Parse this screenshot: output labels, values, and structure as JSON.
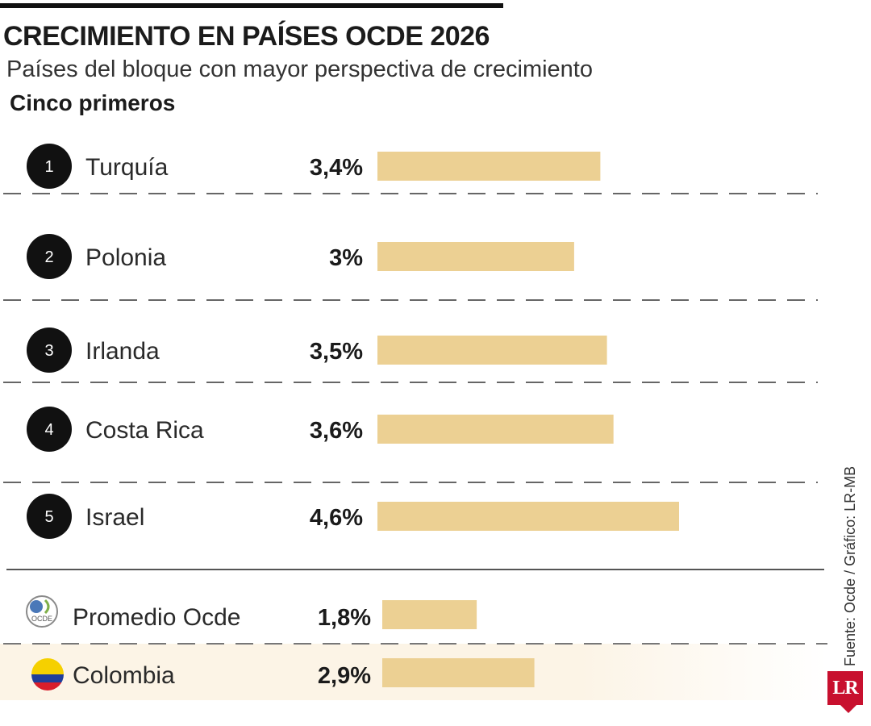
{
  "header": {
    "title": "CRECIMIENTO EN PAÍSES OCDE 2026",
    "subtitle": "Países del bloque con mayor perspectiva de crecimiento",
    "section_label": "Cinco primeros"
  },
  "source": "Fuente: Ocde / Gráfico: LR-MB",
  "logo_text": "LR",
  "colors": {
    "bar": "#ecd093",
    "badge": "#111111",
    "colombia_band": "#fcf4e6",
    "flag_yellow": "#f5d000",
    "flag_blue": "#1f3e9a",
    "flag_red": "#d81e2c"
  },
  "chart_data": {
    "type": "bar",
    "orientation": "horizontal",
    "unit": "%",
    "top5": [
      {
        "rank": "1",
        "country": "Turquía",
        "value": 3.4,
        "label": "3,4%"
      },
      {
        "rank": "2",
        "country": "Polonia",
        "value": 3.0,
        "label": "3%"
      },
      {
        "rank": "3",
        "country": "Irlanda",
        "value": 3.5,
        "label": "3,5%"
      },
      {
        "rank": "4",
        "country": "Costa Rica",
        "value": 3.6,
        "label": "3,6%"
      },
      {
        "rank": "5",
        "country": "Israel",
        "value": 4.6,
        "label": "4,6%"
      }
    ],
    "comparison": [
      {
        "country": "Promedio Ocde",
        "value": 1.8,
        "label": "1,8%",
        "icon": "ocde-logo-icon",
        "icon_text": "OCDE"
      },
      {
        "country": "Colombia",
        "value": 2.9,
        "label": "2,9%",
        "icon": "colombia-flag-icon",
        "highlight": true
      }
    ]
  }
}
